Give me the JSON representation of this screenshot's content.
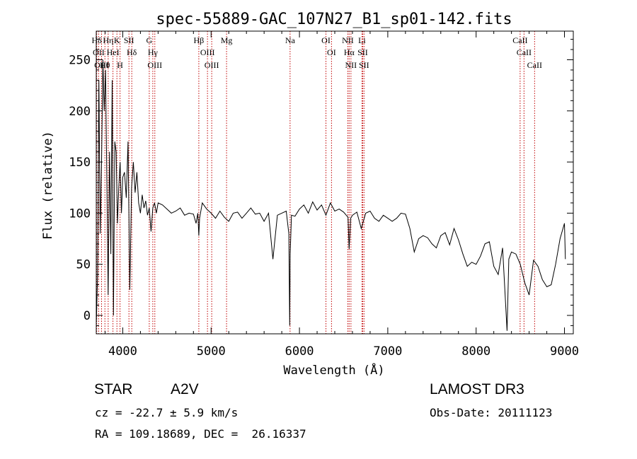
{
  "chart_data": {
    "type": "line",
    "title": "spec-55889-GAC_107N27_B1_sp01-142.fits",
    "xlabel": "Wavelength (Å)",
    "ylabel": "Flux (relative)",
    "xlim": [
      3700,
      9100
    ],
    "ylim": [
      -18,
      278
    ],
    "xticks": [
      4000,
      5000,
      6000,
      7000,
      8000,
      9000
    ],
    "yticks": [
      0,
      50,
      100,
      150,
      200,
      250
    ],
    "xtick_labels": [
      "4000",
      "5000",
      "6000",
      "7000",
      "8000",
      "9000"
    ],
    "ytick_labels": [
      "0",
      "50",
      "100",
      "150",
      "200",
      "250"
    ],
    "line_color": "#000000",
    "marker_color": "#c00000",
    "series": [
      {
        "name": "flux",
        "x": [
          3700,
          3715,
          3730,
          3745,
          3760,
          3775,
          3790,
          3805,
          3820,
          3835,
          3850,
          3865,
          3880,
          3895,
          3910,
          3925,
          3940,
          3955,
          3970,
          3985,
          4000,
          4020,
          4040,
          4060,
          4080,
          4100,
          4120,
          4140,
          4160,
          4180,
          4200,
          4220,
          4240,
          4260,
          4280,
          4300,
          4320,
          4340,
          4360,
          4380,
          4400,
          4450,
          4500,
          4550,
          4600,
          4650,
          4700,
          4750,
          4800,
          4830,
          4850,
          4861,
          4870,
          4900,
          4950,
          5000,
          5050,
          5100,
          5150,
          5200,
          5250,
          5300,
          5350,
          5400,
          5450,
          5500,
          5550,
          5600,
          5650,
          5700,
          5750,
          5800,
          5850,
          5880,
          5890,
          5895,
          5910,
          5950,
          6000,
          6050,
          6100,
          6150,
          6200,
          6250,
          6300,
          6350,
          6400,
          6450,
          6500,
          6550,
          6563,
          6580,
          6600,
          6650,
          6700,
          6750,
          6800,
          6850,
          6900,
          6950,
          7000,
          7050,
          7100,
          7150,
          7200,
          7250,
          7300,
          7350,
          7400,
          7450,
          7500,
          7550,
          7600,
          7650,
          7700,
          7750,
          7800,
          7850,
          7900,
          7950,
          8000,
          8050,
          8100,
          8150,
          8200,
          8250,
          8300,
          8350,
          8370,
          8400,
          8450,
          8500,
          8550,
          8600,
          8650,
          8700,
          8750,
          8800,
          8850,
          8900,
          8950,
          9000,
          9010
        ],
        "y": [
          -10,
          40,
          230,
          80,
          150,
          250,
          200,
          240,
          130,
          20,
          160,
          60,
          230,
          0,
          170,
          160,
          90,
          125,
          150,
          100,
          135,
          140,
          115,
          170,
          25,
          125,
          150,
          120,
          140,
          110,
          100,
          118,
          105,
          112,
          98,
          105,
          82,
          105,
          110,
          100,
          110,
          108,
          104,
          100,
          102,
          105,
          98,
          100,
          99,
          90,
          100,
          78,
          95,
          110,
          104,
          100,
          95,
          102,
          96,
          92,
          100,
          101,
          95,
          100,
          105,
          99,
          100,
          92,
          100,
          55,
          98,
          100,
          102,
          80,
          -10,
          60,
          98,
          97,
          104,
          108,
          100,
          111,
          103,
          108,
          98,
          110,
          102,
          104,
          101,
          96,
          65,
          95,
          98,
          101,
          85,
          100,
          102,
          95,
          92,
          98,
          95,
          92,
          95,
          100,
          99,
          85,
          62,
          75,
          78,
          76,
          70,
          66,
          78,
          81,
          69,
          85,
          74,
          60,
          48,
          52,
          50,
          58,
          70,
          72,
          48,
          40,
          66,
          -15,
          55,
          62,
          60,
          50,
          32,
          20,
          54,
          48,
          35,
          28,
          30,
          50,
          75,
          90,
          55
        ],
        "line_width": 1
      }
    ],
    "spectral_lines": [
      {
        "label": "Hδ",
        "wavelength": 3705
      },
      {
        "label": "OII",
        "wavelength": 3727
      },
      {
        "label": "OIII",
        "wavelength": 3760
      },
      {
        "label": "Hθ",
        "wavelength": 3798
      },
      {
        "label": "Hη",
        "wavelength": 3835
      },
      {
        "label": "HeI",
        "wavelength": 3889
      },
      {
        "label": "K",
        "wavelength": 3934
      },
      {
        "label": "H",
        "wavelength": 3969
      },
      {
        "label": "SII",
        "wavelength": 4070
      },
      {
        "label": "Hδ",
        "wavelength": 4102
      },
      {
        "label": "G",
        "wavelength": 4300
      },
      {
        "label": "Hγ",
        "wavelength": 4340
      },
      {
        "label": "OIII",
        "wavelength": 4363
      },
      {
        "label": "Hβ",
        "wavelength": 4861
      },
      {
        "label": "OIII",
        "wavelength": 4959
      },
      {
        "label": "OIII",
        "wavelength": 5007
      },
      {
        "label": "Mg",
        "wavelength": 5175
      },
      {
        "label": "Na",
        "wavelength": 5894
      },
      {
        "label": "OI",
        "wavelength": 6300
      },
      {
        "label": "OI",
        "wavelength": 6363
      },
      {
        "label": "NII",
        "wavelength": 6548
      },
      {
        "label": "Hα",
        "wavelength": 6563
      },
      {
        "label": "NII",
        "wavelength": 6583
      },
      {
        "label": "Li",
        "wavelength": 6708
      },
      {
        "label": "SII",
        "wavelength": 6716
      },
      {
        "label": "SII",
        "wavelength": 6731
      },
      {
        "label": "CaII",
        "wavelength": 8498
      },
      {
        "label": "CaII",
        "wavelength": 8542
      },
      {
        "label": "CaII",
        "wavelength": 8662
      }
    ]
  },
  "info": {
    "object_class": "STAR",
    "subclass": "A2V",
    "redshift": "cz = -22.7 ± 5.9 km/s",
    "coords": "RA = 109.18689, DEC =  26.16337",
    "survey": "LAMOST DR3",
    "obs_date": "Obs-Date: 20111123"
  }
}
